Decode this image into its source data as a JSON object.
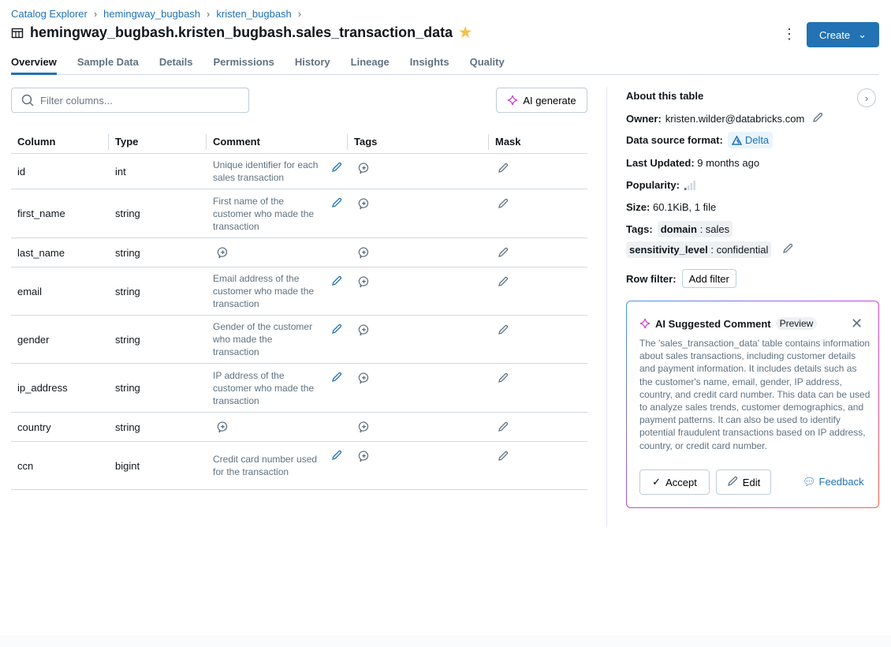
{
  "breadcrumb": [
    "Catalog Explorer",
    "hemingway_bugbash",
    "kristen_bugbash"
  ],
  "title": "hemingway_bugbash.kristen_bugbash.sales_transaction_data",
  "header": {
    "create_label": "Create"
  },
  "tabs": [
    {
      "label": "Overview",
      "active": true
    },
    {
      "label": "Sample Data"
    },
    {
      "label": "Details"
    },
    {
      "label": "Permissions"
    },
    {
      "label": "History"
    },
    {
      "label": "Lineage"
    },
    {
      "label": "Insights"
    },
    {
      "label": "Quality"
    }
  ],
  "filter": {
    "placeholder": "Filter columns...",
    "value": ""
  },
  "ai_generate_label": "AI generate",
  "table": {
    "headers": [
      "Column",
      "Type",
      "Comment",
      "Tags",
      "Mask"
    ],
    "rows": [
      {
        "column": "id",
        "type": "int",
        "comment": "Unique identifier for each sales transaction"
      },
      {
        "column": "first_name",
        "type": "string",
        "comment": "First name of the customer who made the transaction"
      },
      {
        "column": "last_name",
        "type": "string",
        "comment": ""
      },
      {
        "column": "email",
        "type": "string",
        "comment": "Email address of the customer who made the transaction"
      },
      {
        "column": "gender",
        "type": "string",
        "comment": "Gender of the customer who made the transaction"
      },
      {
        "column": "ip_address",
        "type": "string",
        "comment": "IP address of the customer who made the transaction"
      },
      {
        "column": "country",
        "type": "string",
        "comment": ""
      },
      {
        "column": "ccn",
        "type": "bigint",
        "comment": "Credit card number used for the transaction"
      }
    ]
  },
  "about": {
    "title": "About this table",
    "owner_label": "Owner:",
    "owner": "kristen.wilder@databricks.com",
    "format_label": "Data source format:",
    "format": "Delta",
    "updated_label": "Last Updated:",
    "updated": "9 months ago",
    "popularity_label": "Popularity:",
    "popularity_level": 1,
    "size_label": "Size:",
    "size": "60.1KiB, 1 file",
    "tags_label": "Tags:",
    "tags": [
      {
        "key": "domain",
        "value": "sales"
      },
      {
        "key": "sensitivity_level",
        "value": "confidential"
      }
    ],
    "row_filter_label": "Row filter:",
    "add_filter": "Add filter"
  },
  "ai_comment": {
    "title": "AI Suggested Comment",
    "badge": "Preview",
    "text": "The 'sales_transaction_data' table contains information about sales transactions, including customer details and payment information. It includes details such as the customer's name, email, gender, IP address, country, and credit card number. This data can be used to analyze sales trends, customer demographics, and payment patterns. It can also be used to identify potential fraudulent transactions based on IP address, country, or credit card number.",
    "accept": "Accept",
    "edit": "Edit",
    "feedback": "Feedback"
  },
  "colors": {
    "accent": "#2272b4",
    "star": "#f5c04a"
  }
}
